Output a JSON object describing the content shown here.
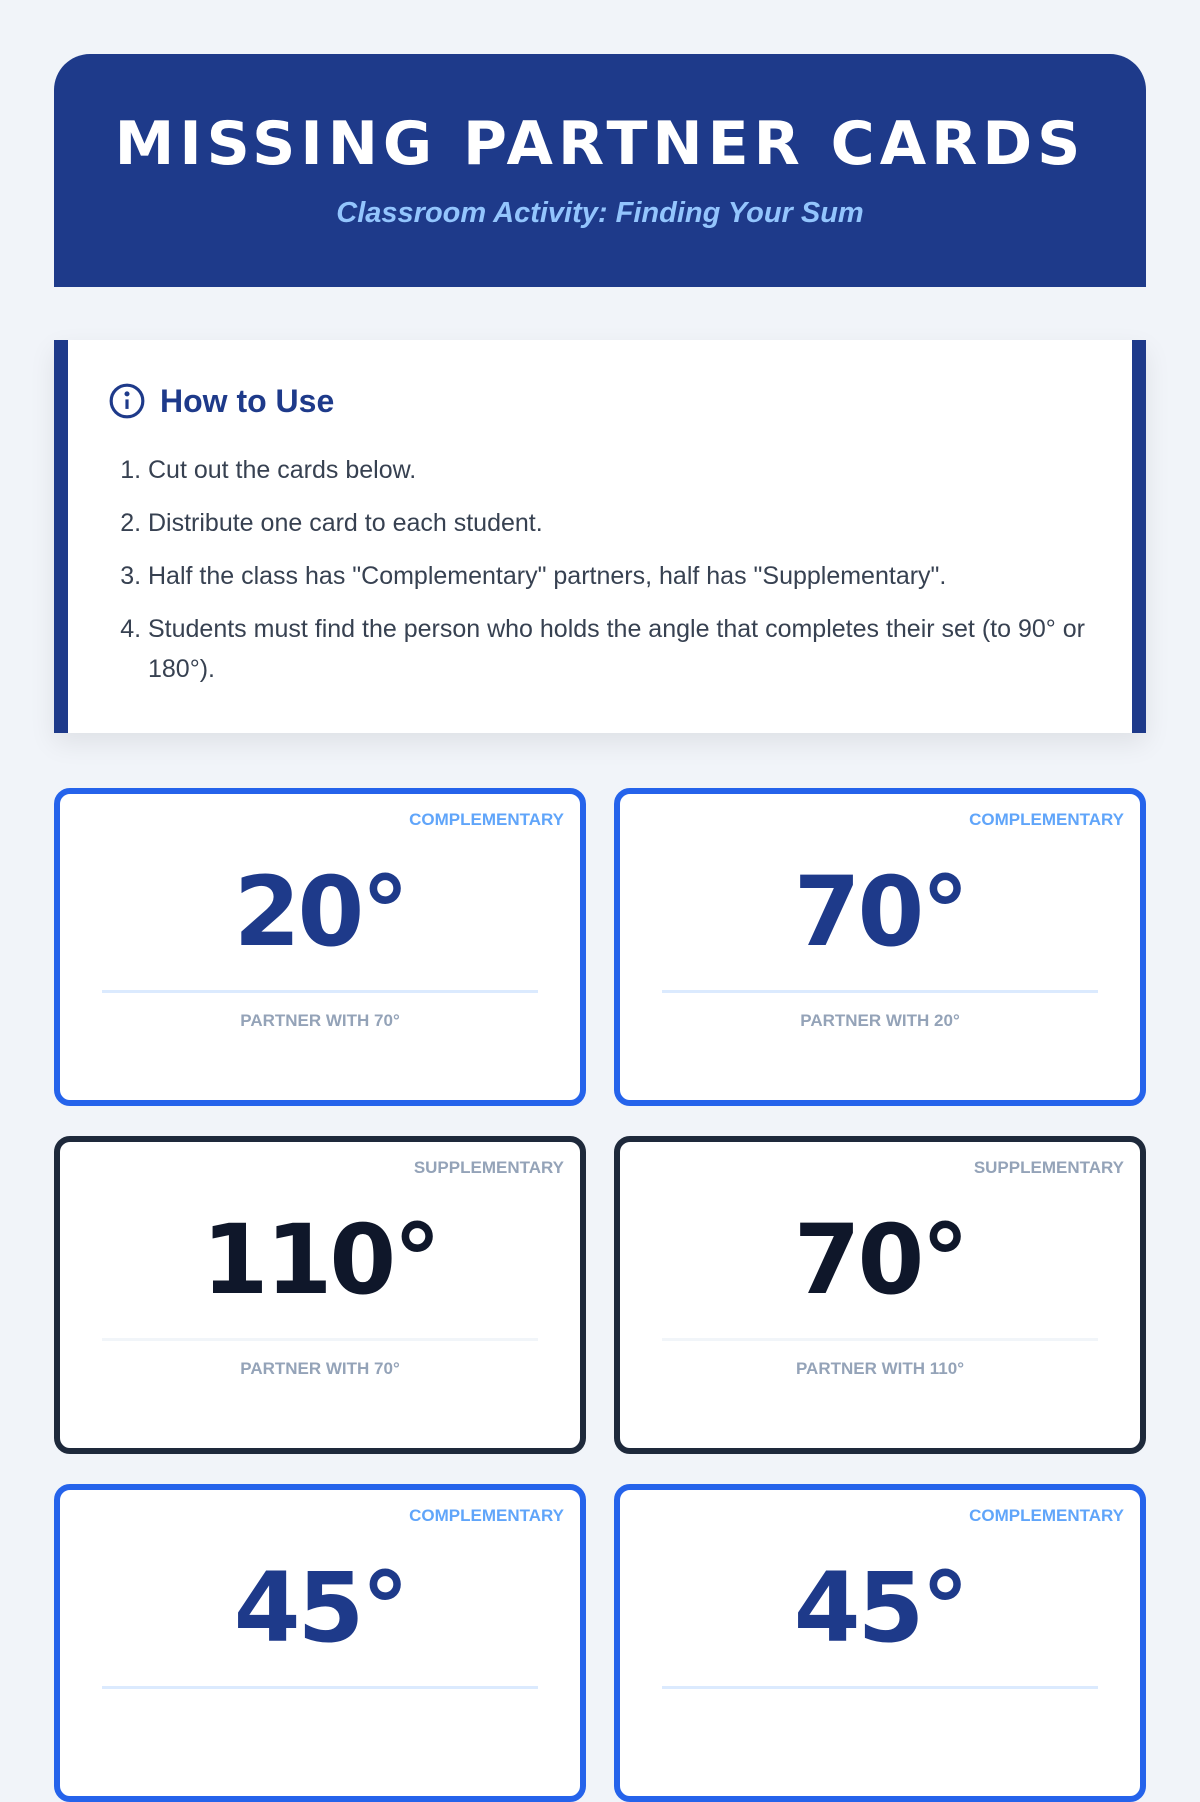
{
  "header": {
    "title": "MISSING PARTNER CARDS",
    "subtitle": "Classroom Activity: Finding Your Sum",
    "color": "#1e3a8a"
  },
  "instructions": {
    "icon": "info-circle-icon",
    "title": "How to Use",
    "steps": [
      "Cut out the cards below.",
      "Distribute one card to each student.",
      "Half the class has \"Complementary\" partners, half has \"Supplementary\".",
      "Students must find the person who holds the angle that completes their set (to 90° or 180°)."
    ]
  },
  "cards": [
    {
      "type": "COMPLEMENTARY",
      "angle": "20°",
      "partner": "PARTNER WITH 70°",
      "style": "complementary"
    },
    {
      "type": "COMPLEMENTARY",
      "angle": "70°",
      "partner": "PARTNER WITH 20°",
      "style": "complementary"
    },
    {
      "type": "SUPPLEMENTARY",
      "angle": "110°",
      "partner": "PARTNER WITH 70°",
      "style": "supplementary"
    },
    {
      "type": "SUPPLEMENTARY",
      "angle": "70°",
      "partner": "PARTNER WITH 110°",
      "style": "supplementary"
    },
    {
      "type": "COMPLEMENTARY",
      "angle": "45°",
      "partner": "",
      "style": "complementary"
    },
    {
      "type": "COMPLEMENTARY",
      "angle": "45°",
      "partner": "",
      "style": "complementary"
    }
  ],
  "colors": {
    "complementary": "#2563eb",
    "supplementary": "#1e293b"
  }
}
